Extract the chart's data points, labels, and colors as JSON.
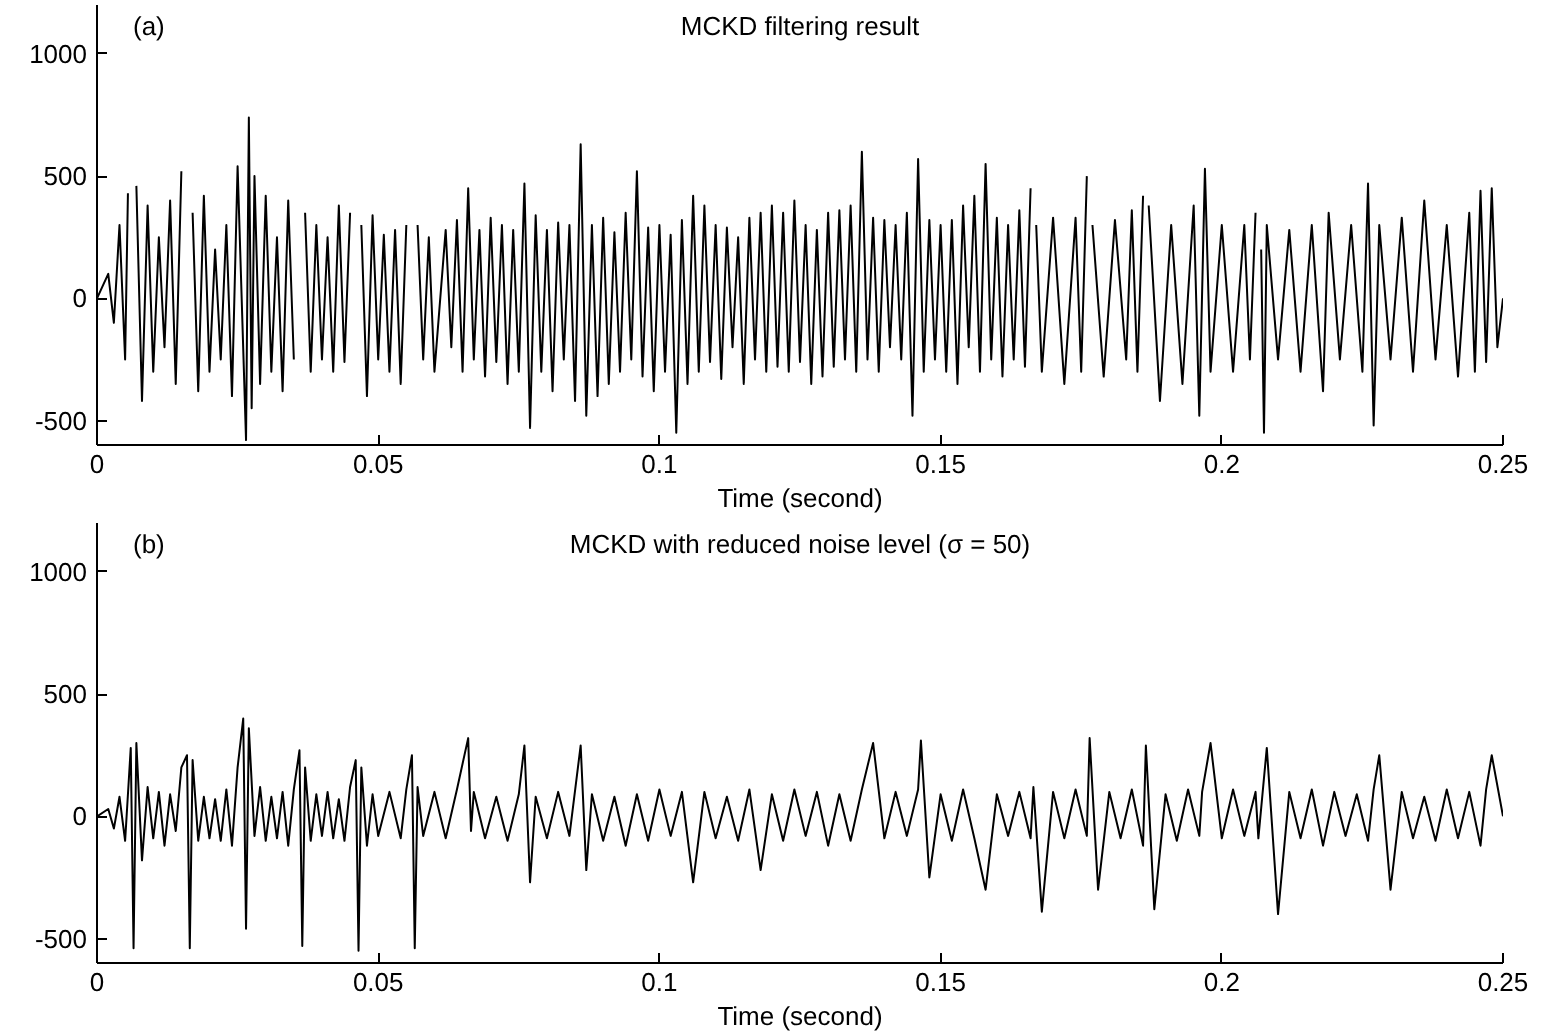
{
  "chart_data": [
    {
      "type": "line",
      "title": "MCKD filtering result",
      "xlabel": "Time (second)",
      "annotations": [
        "(a)"
      ],
      "xlim": [
        0,
        0.25
      ],
      "ylim": [
        -600,
        1200
      ],
      "xticks": [
        0,
        0.05,
        0.1,
        0.15,
        0.2,
        0.25
      ],
      "yticks": [
        -500,
        0,
        500,
        1000
      ],
      "grid": false,
      "line_style": "solid",
      "series": [
        {
          "color": "#000000",
          "x": [
            0,
            0.002,
            0.003,
            0.004,
            0.005,
            0.0055,
            0.0065,
            0.007,
            0.008,
            0.009,
            0.01,
            0.011,
            0.012,
            0.013,
            0.014,
            0.015,
            0.0165,
            0.017,
            0.018,
            0.019,
            0.02,
            0.021,
            0.022,
            0.023,
            0.024,
            0.025,
            0.0265,
            0.027,
            0.0275,
            0.028,
            0.029,
            0.03,
            0.031,
            0.032,
            0.033,
            0.034,
            0.035,
            0.0365,
            0.037,
            0.038,
            0.039,
            0.04,
            0.041,
            0.042,
            0.043,
            0.044,
            0.045,
            0.0465,
            0.047,
            0.048,
            0.049,
            0.05,
            0.051,
            0.052,
            0.053,
            0.054,
            0.055,
            0.0565,
            0.057,
            0.058,
            0.059,
            0.06,
            0.062,
            0.063,
            0.064,
            0.065,
            0.066,
            0.067,
            0.068,
            0.069,
            0.07,
            0.071,
            0.072,
            0.073,
            0.074,
            0.075,
            0.076,
            0.077,
            0.078,
            0.079,
            0.08,
            0.081,
            0.082,
            0.083,
            0.084,
            0.085,
            0.086,
            0.087,
            0.088,
            0.089,
            0.09,
            0.091,
            0.092,
            0.093,
            0.094,
            0.095,
            0.096,
            0.097,
            0.098,
            0.099,
            0.1,
            0.101,
            0.102,
            0.103,
            0.104,
            0.105,
            0.106,
            0.107,
            0.108,
            0.109,
            0.11,
            0.111,
            0.112,
            0.113,
            0.114,
            0.115,
            0.116,
            0.117,
            0.118,
            0.119,
            0.12,
            0.121,
            0.122,
            0.123,
            0.124,
            0.125,
            0.126,
            0.127,
            0.128,
            0.129,
            0.13,
            0.131,
            0.132,
            0.133,
            0.134,
            0.135,
            0.136,
            0.137,
            0.138,
            0.139,
            0.14,
            0.141,
            0.142,
            0.143,
            0.144,
            0.145,
            0.146,
            0.147,
            0.148,
            0.149,
            0.15,
            0.151,
            0.152,
            0.153,
            0.154,
            0.155,
            0.156,
            0.157,
            0.158,
            0.159,
            0.16,
            0.161,
            0.162,
            0.163,
            0.164,
            0.165,
            0.166,
            0.1665,
            0.167,
            0.168,
            0.17,
            0.172,
            0.174,
            0.175,
            0.176,
            0.1765,
            0.177,
            0.179,
            0.181,
            0.183,
            0.184,
            0.185,
            0.186,
            0.1865,
            0.187,
            0.189,
            0.191,
            0.193,
            0.195,
            0.196,
            0.197,
            0.198,
            0.2,
            0.202,
            0.204,
            0.205,
            0.206,
            0.2065,
            0.207,
            0.2075,
            0.208,
            0.21,
            0.212,
            0.214,
            0.216,
            0.218,
            0.219,
            0.221,
            0.223,
            0.225,
            0.226,
            0.227,
            0.228,
            0.23,
            0.232,
            0.234,
            0.236,
            0.238,
            0.24,
            0.242,
            0.244,
            0.245,
            0.246,
            0.247,
            0.248,
            0.249,
            0.25
          ],
          "values": [
            0,
            100,
            -100,
            300,
            -250,
            430,
            null,
            460,
            -420,
            380,
            -300,
            250,
            -200,
            400,
            -350,
            520,
            null,
            350,
            -380,
            420,
            -300,
            200,
            -250,
            300,
            -400,
            540,
            -580,
            740,
            -450,
            500,
            -350,
            420,
            -300,
            250,
            -380,
            400,
            -250,
            null,
            350,
            -300,
            300,
            -250,
            250,
            -300,
            380,
            -260,
            350,
            null,
            300,
            -400,
            340,
            -250,
            260,
            -300,
            280,
            -350,
            300,
            null,
            300,
            -250,
            250,
            -300,
            280,
            -200,
            320,
            -300,
            450,
            -250,
            280,
            -320,
            330,
            -260,
            300,
            -350,
            280,
            -300,
            470,
            -530,
            340,
            -300,
            280,
            -380,
            310,
            -250,
            300,
            -420,
            630,
            -480,
            300,
            -400,
            330,
            -350,
            270,
            -300,
            350,
            -250,
            520,
            -320,
            290,
            -380,
            300,
            -300,
            260,
            -550,
            320,
            -350,
            420,
            -300,
            380,
            -260,
            300,
            -330,
            290,
            -200,
            250,
            -350,
            330,
            -250,
            350,
            -300,
            380,
            -280,
            350,
            -300,
            400,
            -260,
            300,
            -350,
            280,
            -320,
            350,
            -280,
            360,
            -250,
            380,
            -300,
            600,
            -250,
            330,
            -300,
            320,
            -200,
            300,
            -250,
            350,
            -480,
            570,
            -300,
            320,
            -250,
            300,
            -300,
            320,
            -350,
            380,
            -200,
            420,
            -300,
            550,
            -250,
            330,
            -320,
            300,
            -250,
            360,
            -280,
            450,
            null,
            300,
            -300,
            330,
            -350,
            330,
            -300,
            500,
            null,
            300,
            -320,
            320,
            -250,
            360,
            -300,
            420,
            null,
            380,
            -420,
            300,
            -350,
            380,
            -480,
            530,
            -300,
            300,
            -300,
            300,
            -250,
            350,
            null,
            200,
            -550,
            300,
            -250,
            280,
            -300,
            300,
            -380,
            350,
            -250,
            300,
            -300,
            470,
            -520,
            300,
            -250,
            330,
            -300,
            400,
            -250,
            300,
            -320,
            350,
            -300,
            440,
            -260,
            450,
            -200,
            0
          ]
        }
      ]
    },
    {
      "type": "line",
      "title": "MCKD with reduced noise level (σ = 50)",
      "xlabel": "Time (second)",
      "annotations": [
        "(b)"
      ],
      "xlim": [
        0,
        0.25
      ],
      "ylim": [
        -600,
        1200
      ],
      "xticks": [
        0,
        0.05,
        0.1,
        0.15,
        0.2,
        0.25
      ],
      "yticks": [
        -500,
        0,
        500,
        1000
      ],
      "grid": false,
      "line_style": "solid",
      "series": [
        {
          "color": "#000000",
          "x": [
            0,
            0.002,
            0.003,
            0.004,
            0.005,
            0.006,
            0.0065,
            0.007,
            0.008,
            0.009,
            0.01,
            0.011,
            0.012,
            0.013,
            0.014,
            0.015,
            0.016,
            0.0165,
            0.017,
            0.018,
            0.019,
            0.02,
            0.021,
            0.022,
            0.023,
            0.024,
            0.025,
            0.026,
            0.0265,
            0.027,
            0.028,
            0.029,
            0.03,
            0.031,
            0.032,
            0.033,
            0.034,
            0.035,
            0.036,
            0.0365,
            0.037,
            0.038,
            0.039,
            0.04,
            0.041,
            0.042,
            0.043,
            0.044,
            0.045,
            0.046,
            0.0465,
            0.047,
            0.048,
            0.049,
            0.05,
            0.052,
            0.054,
            0.055,
            0.056,
            0.0565,
            0.057,
            0.058,
            0.06,
            0.062,
            0.064,
            0.066,
            0.0665,
            0.067,
            0.069,
            0.071,
            0.073,
            0.075,
            0.076,
            0.077,
            0.078,
            0.08,
            0.082,
            0.084,
            0.086,
            0.087,
            0.088,
            0.09,
            0.092,
            0.094,
            0.096,
            0.098,
            0.1,
            0.102,
            0.104,
            0.106,
            0.108,
            0.11,
            0.112,
            0.114,
            0.116,
            0.118,
            0.12,
            0.122,
            0.124,
            0.126,
            0.128,
            0.13,
            0.132,
            0.134,
            0.136,
            0.138,
            0.14,
            0.142,
            0.144,
            0.146,
            0.1465,
            0.148,
            0.15,
            0.152,
            0.154,
            0.156,
            0.158,
            0.16,
            0.162,
            0.164,
            0.166,
            0.1665,
            0.168,
            0.17,
            0.172,
            0.174,
            0.176,
            0.1765,
            0.178,
            0.18,
            0.182,
            0.184,
            0.186,
            0.1865,
            0.188,
            0.19,
            0.192,
            0.194,
            0.196,
            0.1965,
            0.198,
            0.2,
            0.202,
            0.204,
            0.206,
            0.2065,
            0.208,
            0.21,
            0.212,
            0.214,
            0.216,
            0.218,
            0.22,
            0.222,
            0.224,
            0.226,
            0.227,
            0.228,
            0.23,
            0.232,
            0.234,
            0.236,
            0.238,
            0.24,
            0.242,
            0.244,
            0.246,
            0.247,
            0.248,
            0.25
          ],
          "values": [
            0,
            30,
            -50,
            80,
            -100,
            280,
            -540,
            300,
            -180,
            120,
            -90,
            100,
            -120,
            90,
            -60,
            200,
            250,
            -540,
            230,
            -100,
            80,
            -90,
            70,
            -100,
            110,
            -120,
            200,
            400,
            -460,
            360,
            -80,
            120,
            -100,
            80,
            -90,
            100,
            -120,
            110,
            270,
            -530,
            200,
            -100,
            90,
            -80,
            100,
            -90,
            70,
            -100,
            120,
            230,
            -550,
            200,
            -120,
            90,
            -80,
            100,
            -90,
            110,
            250,
            -540,
            120,
            -80,
            100,
            -90,
            110,
            320,
            -60,
            100,
            -90,
            80,
            -100,
            90,
            290,
            -270,
            80,
            -90,
            100,
            -80,
            290,
            -220,
            90,
            -100,
            80,
            -120,
            90,
            -100,
            110,
            -80,
            100,
            -270,
            100,
            -90,
            80,
            -100,
            110,
            -220,
            90,
            -100,
            110,
            -80,
            100,
            -120,
            90,
            -100,
            110,
            300,
            -90,
            100,
            -80,
            110,
            310,
            -250,
            90,
            -100,
            110,
            -90,
            -300,
            90,
            -80,
            100,
            -90,
            120,
            -390,
            100,
            -90,
            110,
            -80,
            320,
            -300,
            100,
            -90,
            110,
            -120,
            290,
            -380,
            90,
            -100,
            110,
            -80,
            100,
            300,
            -90,
            110,
            -80,
            100,
            -90,
            280,
            -400,
            100,
            -90,
            110,
            -120,
            100,
            -80,
            90,
            -100,
            110,
            250,
            -300,
            100,
            -90,
            80,
            -100,
            110,
            -90,
            100,
            -120,
            110,
            250,
            0
          ]
        }
      ]
    }
  ]
}
